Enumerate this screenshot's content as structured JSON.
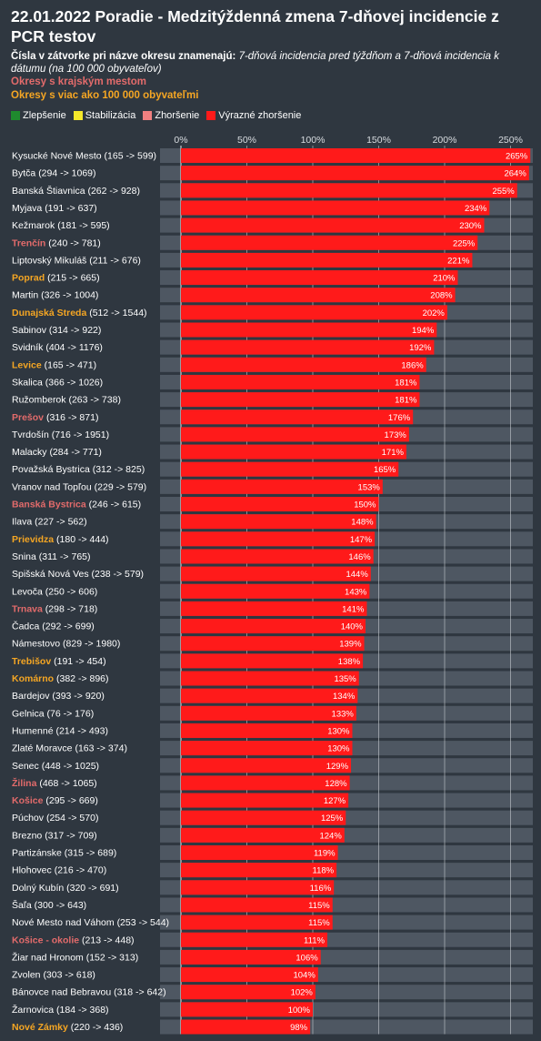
{
  "header": {
    "title": "22.01.2022 Poradie - Medzitýždenná zmena 7-dňovej incidencie z PCR testov",
    "subtitle_lead": "Čísla v zátvorke pri názve okresu znamenajú:",
    "subtitle_rest": "7-dňová incidencia pred týždňom a 7-dňová incidencia k dátumu (na 100 000 obyvateľov)",
    "note_regional": "Okresy s krajským mestom",
    "note_large": "Okresy s viac ako 100 000 obyvateľmi"
  },
  "legend": [
    {
      "label": "Zlepšenie",
      "color": "#1f8a2e"
    },
    {
      "label": "Stabilizácia",
      "color": "#f5e82a"
    },
    {
      "label": "Zhoršenie",
      "color": "#f08080"
    },
    {
      "label": "Výrazné zhoršenie",
      "color": "#ff1a1a"
    }
  ],
  "colors": {
    "bar": "#ff1a1a",
    "track": "#4e5762",
    "background": "#2f3740",
    "regional_label": "#e36b6b",
    "large_label": "#f5a623",
    "gridline": "#c8ccd0"
  },
  "chart_data": {
    "type": "bar",
    "orientation": "horizontal",
    "x_ticks": [
      "0%",
      "50%",
      "100%",
      "150%",
      "200%",
      "250%"
    ],
    "xlim": [
      0,
      265
    ],
    "grid": true,
    "categories": [
      {
        "name": "Kysucké Nové Mesto",
        "detail": "(165 -> 599)",
        "group": "normal"
      },
      {
        "name": "Bytča",
        "detail": "(294 -> 1069)",
        "group": "normal"
      },
      {
        "name": "Banská Štiavnica",
        "detail": "(262 -> 928)",
        "group": "normal"
      },
      {
        "name": "Myjava",
        "detail": "(191 -> 637)",
        "group": "normal"
      },
      {
        "name": "Kežmarok",
        "detail": "(181 -> 595)",
        "group": "normal"
      },
      {
        "name": "Trenčín",
        "detail": "(240 -> 781)",
        "group": "regional"
      },
      {
        "name": "Liptovský Mikuláš",
        "detail": "(211 -> 676)",
        "group": "normal"
      },
      {
        "name": "Poprad",
        "detail": "(215 -> 665)",
        "group": "large"
      },
      {
        "name": "Martin",
        "detail": "(326 -> 1004)",
        "group": "normal"
      },
      {
        "name": "Dunajská Streda",
        "detail": "(512 -> 1544)",
        "group": "large"
      },
      {
        "name": "Sabinov",
        "detail": "(314 -> 922)",
        "group": "normal"
      },
      {
        "name": "Svidník",
        "detail": "(404 -> 1176)",
        "group": "normal"
      },
      {
        "name": "Levice",
        "detail": "(165 -> 471)",
        "group": "large"
      },
      {
        "name": "Skalica",
        "detail": "(366 -> 1026)",
        "group": "normal"
      },
      {
        "name": "Ružomberok",
        "detail": "(263 -> 738)",
        "group": "normal"
      },
      {
        "name": "Prešov",
        "detail": "(316 -> 871)",
        "group": "regional"
      },
      {
        "name": "Tvrdošín",
        "detail": "(716 -> 1951)",
        "group": "normal"
      },
      {
        "name": "Malacky",
        "detail": "(284 -> 771)",
        "group": "normal"
      },
      {
        "name": "Považská Bystrica",
        "detail": "(312 -> 825)",
        "group": "normal"
      },
      {
        "name": "Vranov nad Topľou",
        "detail": "(229 -> 579)",
        "group": "normal"
      },
      {
        "name": "Banská Bystrica",
        "detail": "(246 -> 615)",
        "group": "regional"
      },
      {
        "name": "Ilava",
        "detail": "(227 -> 562)",
        "group": "normal"
      },
      {
        "name": "Prievidza",
        "detail": "(180 -> 444)",
        "group": "large"
      },
      {
        "name": "Snina",
        "detail": "(311 -> 765)",
        "group": "normal"
      },
      {
        "name": "Spišská Nová Ves",
        "detail": "(238 -> 579)",
        "group": "normal"
      },
      {
        "name": "Levoča",
        "detail": "(250 -> 606)",
        "group": "normal"
      },
      {
        "name": "Trnava",
        "detail": "(298 -> 718)",
        "group": "regional"
      },
      {
        "name": "Čadca",
        "detail": "(292 -> 699)",
        "group": "normal"
      },
      {
        "name": "Námestovo",
        "detail": "(829 -> 1980)",
        "group": "normal"
      },
      {
        "name": "Trebišov",
        "detail": "(191 -> 454)",
        "group": "large"
      },
      {
        "name": "Komárno",
        "detail": "(382 -> 896)",
        "group": "large"
      },
      {
        "name": "Bardejov",
        "detail": "(393 -> 920)",
        "group": "normal"
      },
      {
        "name": "Gelnica",
        "detail": "(76 -> 176)",
        "group": "normal"
      },
      {
        "name": "Humenné",
        "detail": "(214 -> 493)",
        "group": "normal"
      },
      {
        "name": "Zlaté Moravce",
        "detail": "(163 -> 374)",
        "group": "normal"
      },
      {
        "name": "Senec",
        "detail": "(448 -> 1025)",
        "group": "normal"
      },
      {
        "name": "Žilina",
        "detail": "(468 -> 1065)",
        "group": "regional"
      },
      {
        "name": "Košice",
        "detail": "(295 -> 669)",
        "group": "regional"
      },
      {
        "name": "Púchov",
        "detail": "(254 -> 570)",
        "group": "normal"
      },
      {
        "name": "Brezno",
        "detail": "(317 -> 709)",
        "group": "normal"
      },
      {
        "name": "Partizánske",
        "detail": "(315 -> 689)",
        "group": "normal"
      },
      {
        "name": "Hlohovec",
        "detail": "(216 -> 470)",
        "group": "normal"
      },
      {
        "name": "Dolný Kubín",
        "detail": "(320 -> 691)",
        "group": "normal"
      },
      {
        "name": "Šaľa",
        "detail": "(300 -> 643)",
        "group": "normal"
      },
      {
        "name": "Nové Mesto nad Váhom",
        "detail": "(253 -> 544)",
        "group": "normal"
      },
      {
        "name": "Košice - okolie",
        "detail": "(213 -> 448)",
        "group": "regional"
      },
      {
        "name": "Žiar nad Hronom",
        "detail": "(152 -> 313)",
        "group": "normal"
      },
      {
        "name": "Zvolen",
        "detail": "(303 -> 618)",
        "group": "normal"
      },
      {
        "name": "Bánovce nad Bebravou",
        "detail": "(318 -> 642)",
        "group": "normal"
      },
      {
        "name": "Žarnovica",
        "detail": "(184 -> 368)",
        "group": "normal"
      },
      {
        "name": "Nové Zámky",
        "detail": "(220 -> 436)",
        "group": "large"
      }
    ],
    "values": [
      265,
      264,
      255,
      234,
      230,
      225,
      221,
      210,
      208,
      202,
      194,
      192,
      186,
      181,
      181,
      176,
      173,
      171,
      165,
      153,
      150,
      148,
      147,
      146,
      144,
      143,
      141,
      140,
      139,
      138,
      135,
      134,
      133,
      130,
      130,
      129,
      128,
      127,
      125,
      124,
      119,
      118,
      116,
      115,
      115,
      111,
      106,
      104,
      102,
      100,
      98
    ],
    "value_labels": [
      "265%",
      "264%",
      "255%",
      "234%",
      "230%",
      "225%",
      "221%",
      "210%",
      "208%",
      "202%",
      "194%",
      "192%",
      "186%",
      "181%",
      "181%",
      "176%",
      "173%",
      "171%",
      "165%",
      "153%",
      "150%",
      "148%",
      "147%",
      "146%",
      "144%",
      "143%",
      "141%",
      "140%",
      "139%",
      "138%",
      "135%",
      "134%",
      "133%",
      "130%",
      "130%",
      "129%",
      "128%",
      "127%",
      "125%",
      "124%",
      "119%",
      "118%",
      "116%",
      "115%",
      "115%",
      "111%",
      "106%",
      "104%",
      "102%",
      "100%",
      "98%"
    ]
  }
}
